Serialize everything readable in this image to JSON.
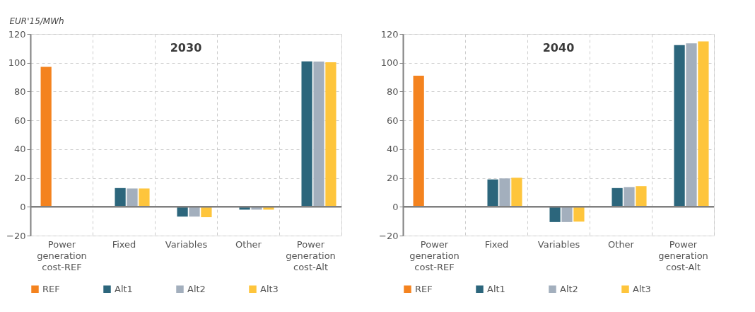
{
  "chart_data": [
    {
      "type": "bar",
      "title": "2030",
      "ylabel": "EUR'15/MWh",
      "categories": [
        "Power generation cost-REF",
        "Fixed",
        "Variables",
        "Other",
        "Power generation cost-Alt"
      ],
      "ylim": [
        -20,
        120
      ],
      "yticks": [
        -20,
        0,
        20,
        40,
        60,
        80,
        100,
        120
      ],
      "grid": true,
      "legend": "bottom",
      "ref_lines": [
        {
          "axis": "y",
          "value": 0,
          "color": "#808080"
        }
      ],
      "series": [
        {
          "name": "REF",
          "color": "#f4831f",
          "values": [
            97.2,
            null,
            null,
            null,
            null
          ]
        },
        {
          "name": "Alt1",
          "color": "#2c667c",
          "values": [
            null,
            13,
            -6.8,
            -2,
            101
          ]
        },
        {
          "name": "Alt2",
          "color": "#a3afbd",
          "values": [
            null,
            12.7,
            -6.8,
            -2,
            100.8
          ]
        },
        {
          "name": "Alt3",
          "color": "#fec53c",
          "values": [
            null,
            12.7,
            -7.2,
            -2,
            100.4
          ]
        }
      ]
    },
    {
      "type": "bar",
      "title": "2040",
      "categories": [
        "Power generation cost-REF",
        "Fixed",
        "Variables",
        "Other",
        "Power generation cost-Alt"
      ],
      "ylim": [
        -20,
        120
      ],
      "yticks": [
        -20,
        0,
        20,
        40,
        60,
        80,
        100,
        120
      ],
      "grid": true,
      "legend": "bottom",
      "ref_lines": [
        {
          "axis": "y",
          "value": 0,
          "color": "#808080"
        }
      ],
      "series": [
        {
          "name": "REF",
          "color": "#f4831f",
          "values": [
            91,
            null,
            null,
            null,
            null
          ]
        },
        {
          "name": "Alt1",
          "color": "#2c667c",
          "values": [
            null,
            19,
            -10.6,
            13,
            112.3
          ]
        },
        {
          "name": "Alt2",
          "color": "#a3afbd",
          "values": [
            null,
            19.7,
            -10.6,
            13.7,
            113.5
          ]
        },
        {
          "name": "Alt3",
          "color": "#fec53c",
          "values": [
            null,
            20.2,
            -10.3,
            14.3,
            114.9
          ]
        }
      ]
    }
  ]
}
